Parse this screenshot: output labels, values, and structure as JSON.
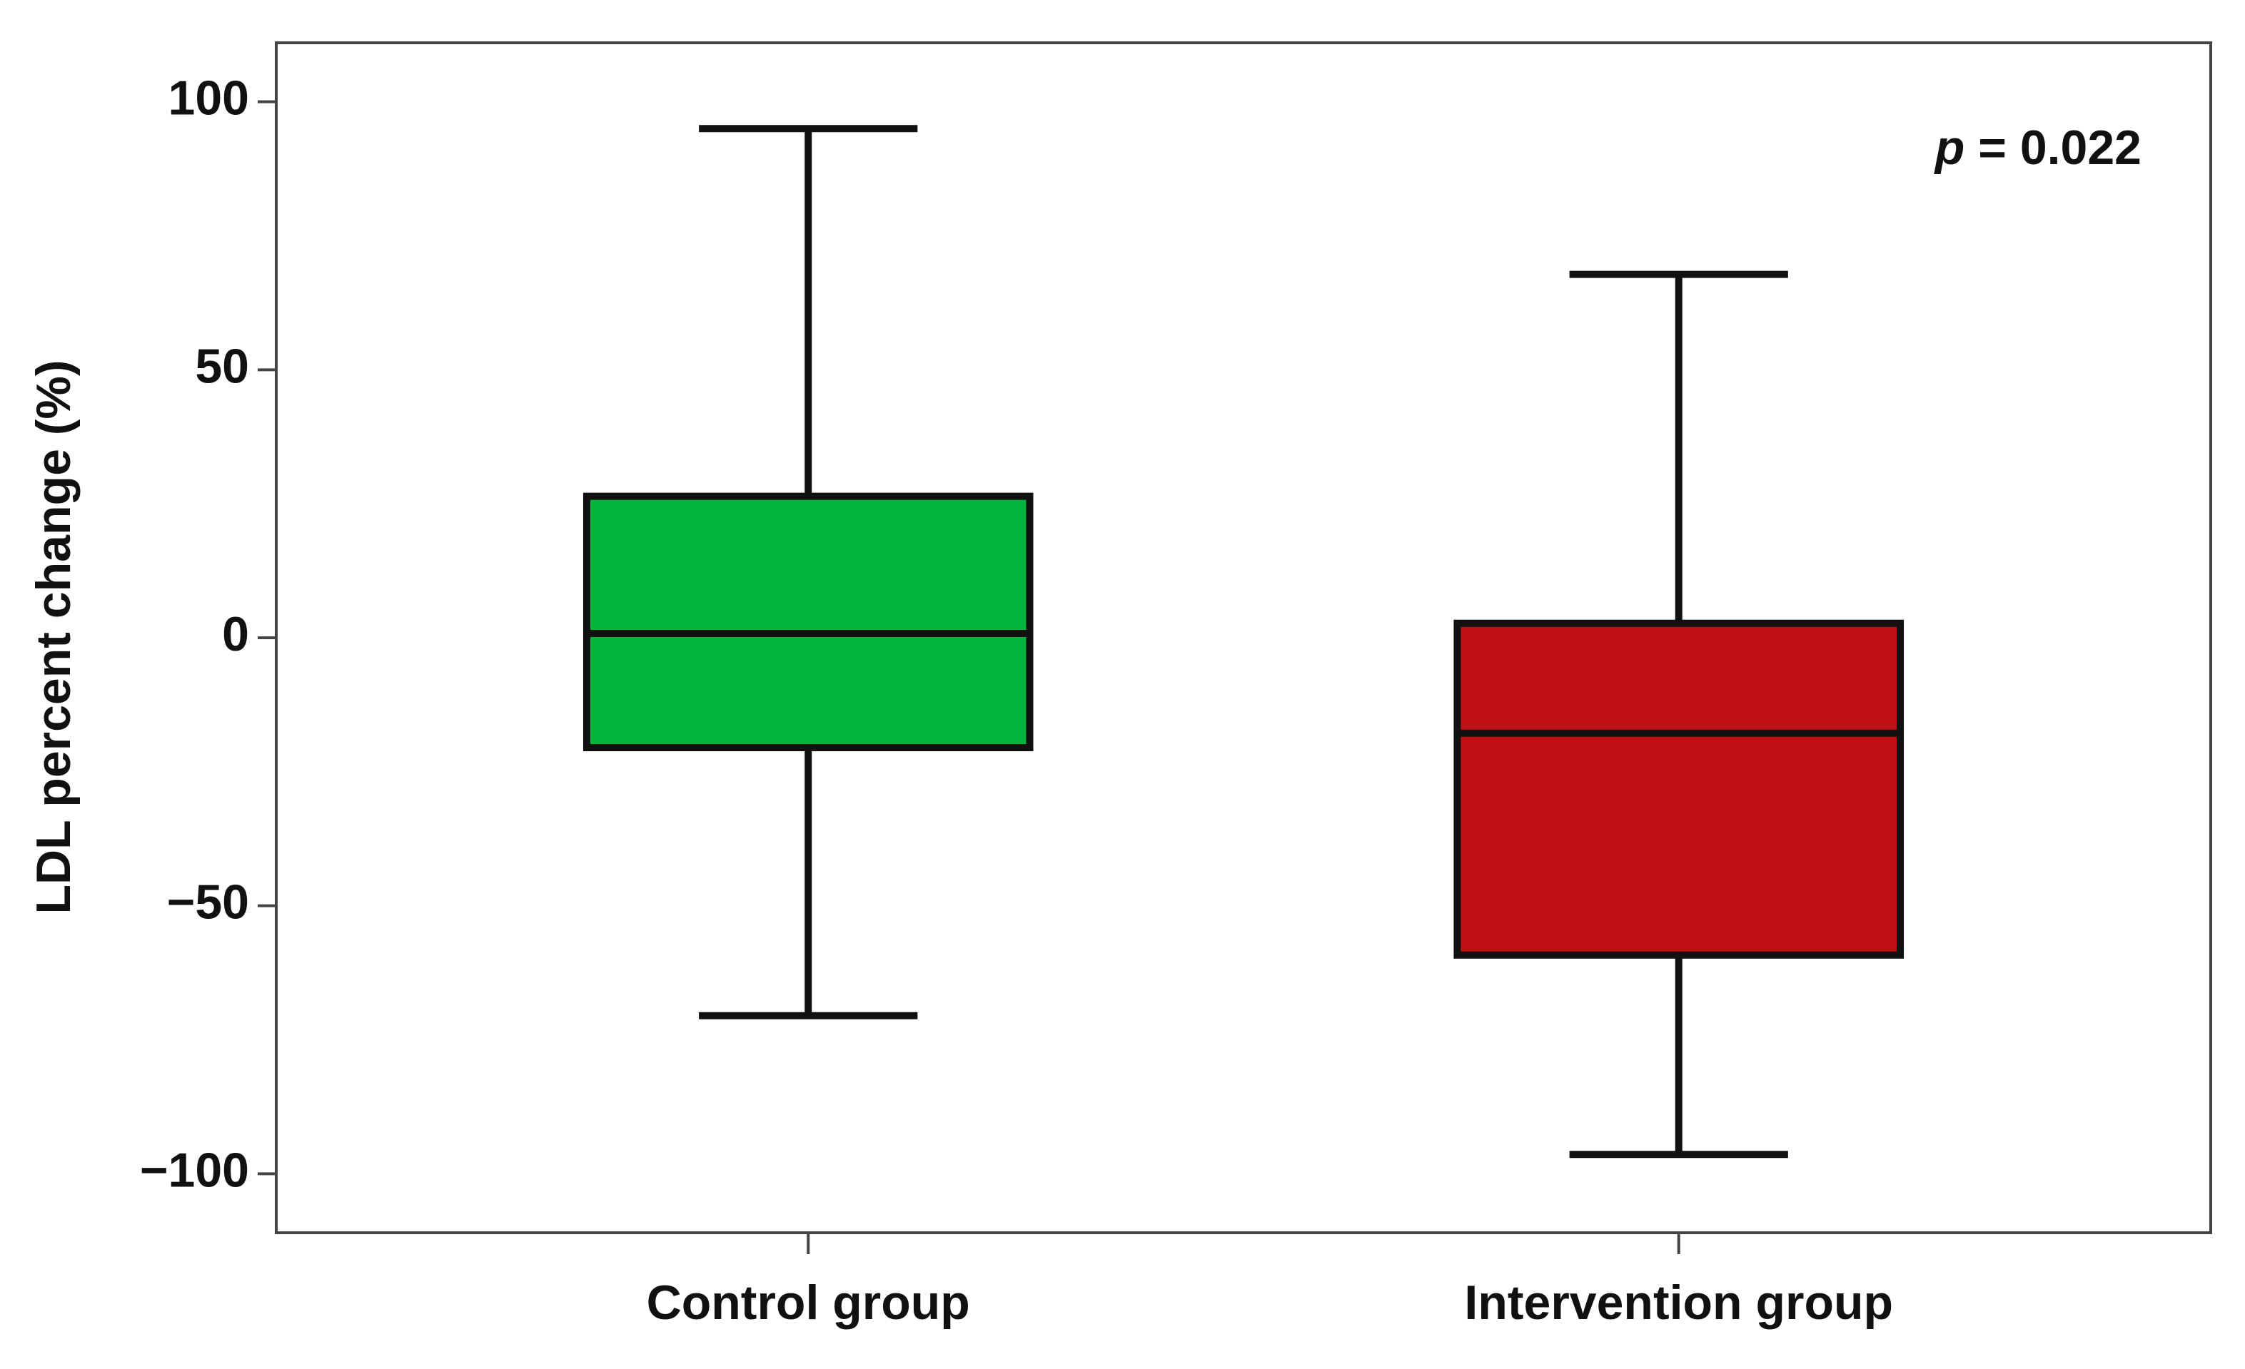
{
  "chart_data": {
    "type": "box",
    "y_label": "LDL percent change (%)",
    "annotation": "p = 0.022",
    "categories": [
      "Control group",
      "Intervention group"
    ],
    "colors": [
      "#00b43c",
      "#bf1014"
    ],
    "boxes": [
      {
        "min": -70.5,
        "q1": -20.5,
        "median": 0.8,
        "q3": 26.4,
        "max": 95
      },
      {
        "min": -96.4,
        "q1": -59.2,
        "median": -17.8,
        "q3": 2.7,
        "max": 67.8
      }
    ],
    "ylim": [
      -111,
      111
    ],
    "yticks": [
      {
        "value": -100,
        "label": "−100"
      },
      {
        "value": -50,
        "label": "−50"
      },
      0,
      50,
      100
    ]
  }
}
